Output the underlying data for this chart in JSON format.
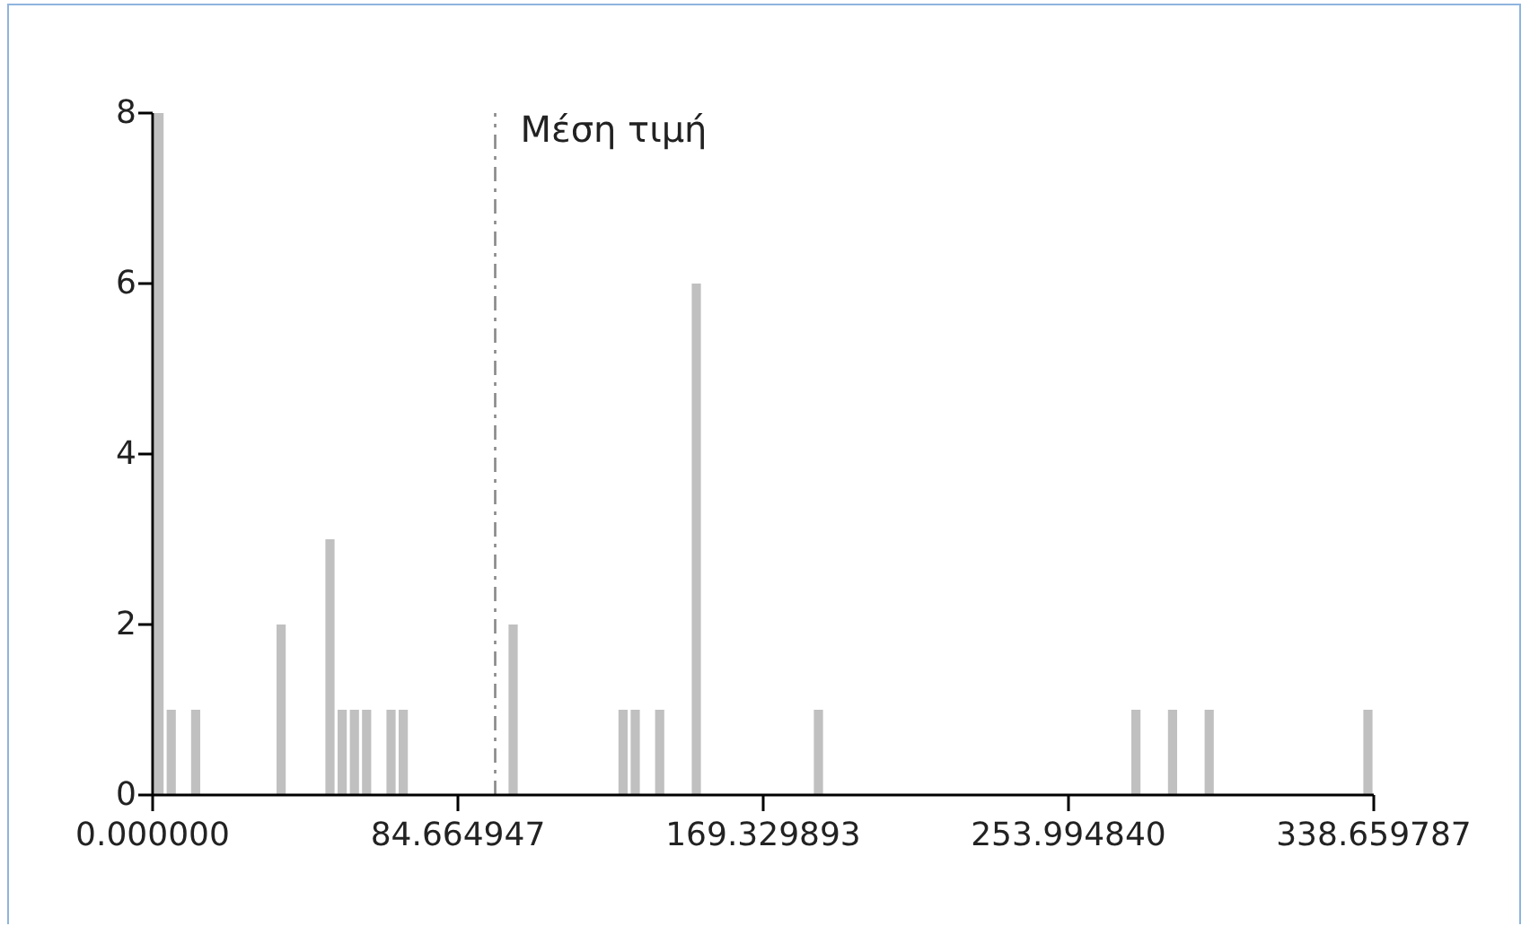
{
  "chart_data": {
    "type": "histogram",
    "color": "#c0c0c0",
    "bins": [
      0,
      3.39,
      6.77,
      10.16,
      13.55,
      16.93,
      20.32,
      23.71,
      27.09,
      30.48,
      33.87,
      37.25,
      40.64,
      44.03,
      47.41,
      50.8,
      54.19,
      57.57,
      60.96,
      64.35,
      67.73,
      71.12,
      74.51,
      77.89,
      81.28,
      84.66,
      88.05,
      91.44,
      94.82,
      98.21,
      101.6,
      104.98,
      108.37,
      111.76,
      115.14,
      118.53,
      121.92,
      125.3,
      128.69,
      132.08,
      135.46,
      138.85,
      142.24,
      145.62,
      149.01,
      152.4,
      155.78,
      159.17,
      162.56,
      165.94,
      169.33,
      172.72,
      176.1,
      179.49,
      182.88,
      186.26,
      189.65,
      193.04,
      196.42,
      199.81,
      203.2,
      206.58,
      209.97,
      213.36,
      216.74,
      220.13,
      223.52,
      226.9,
      230.29,
      233.68,
      237.06,
      240.45,
      243.84,
      247.22,
      250.61,
      253.99,
      257.38,
      260.77,
      264.15,
      267.54,
      270.93,
      274.31,
      277.7,
      281.09,
      284.47,
      287.86,
      291.25,
      294.63,
      298.02,
      301.41,
      304.79,
      308.18,
      311.57,
      314.95,
      318.34,
      321.73,
      325.11,
      328.5,
      331.89,
      335.27,
      338.66
    ],
    "values": [
      8,
      1,
      0,
      1,
      0,
      0,
      0,
      0,
      0,
      0,
      2,
      0,
      0,
      0,
      3,
      1,
      1,
      1,
      0,
      1,
      1,
      0,
      0,
      0,
      0,
      0,
      0,
      0,
      0,
      2,
      0,
      0,
      0,
      0,
      0,
      0,
      0,
      0,
      1,
      1,
      0,
      1,
      0,
      0,
      6,
      0,
      0,
      0,
      0,
      0,
      0,
      0,
      0,
      0,
      1,
      0,
      0,
      0,
      0,
      0,
      0,
      0,
      0,
      0,
      0,
      0,
      0,
      0,
      0,
      0,
      0,
      0,
      0,
      0,
      0,
      0,
      0,
      0,
      0,
      0,
      1,
      0,
      0,
      1,
      0,
      0,
      1,
      0,
      0,
      0,
      0,
      0,
      0,
      0,
      0,
      0,
      0,
      0,
      0,
      1
    ],
    "xlim": [
      0,
      338.659787
    ],
    "xticks": [
      {
        "value": 0,
        "label": "0.000000"
      },
      {
        "value": 84.664947,
        "label": "84.664947"
      },
      {
        "value": 169.329893,
        "label": "169.329893"
      },
      {
        "value": 253.99484,
        "label": "253.994840"
      },
      {
        "value": 338.659787,
        "label": "338.659787"
      }
    ],
    "ylim": [
      0,
      8
    ],
    "yticks": [
      0,
      2,
      4,
      6,
      8
    ],
    "ref_lines": [
      {
        "axis": "x",
        "value": 95,
        "label": "Μέση τιμή",
        "color": "#888888",
        "line_style": "dashed"
      }
    ]
  }
}
